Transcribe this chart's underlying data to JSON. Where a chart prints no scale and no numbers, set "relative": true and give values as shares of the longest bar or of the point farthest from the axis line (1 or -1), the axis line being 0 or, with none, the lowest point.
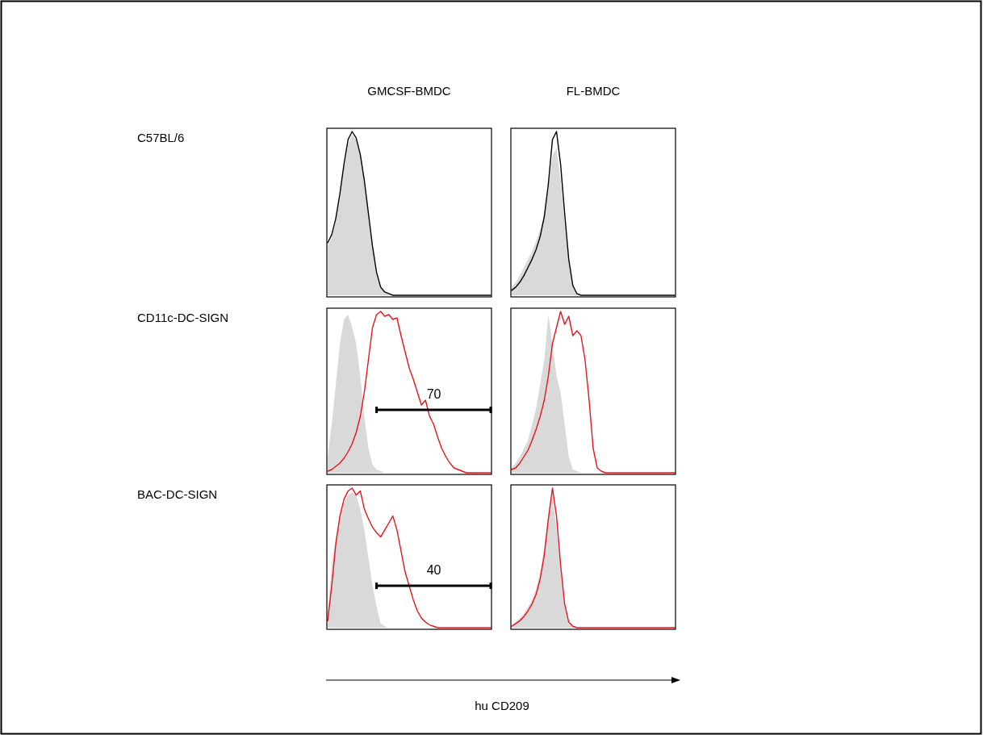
{
  "chart_data": [
    {
      "type": "area",
      "relative": true,
      "tick_labels": false,
      "title": "GMCSF-BMDC",
      "ylabel": "C57BL/6",
      "categories": [
        null,
        null,
        null,
        null,
        null,
        null,
        null,
        null,
        null,
        null,
        null,
        null,
        null,
        null,
        null,
        null,
        null,
        null,
        null,
        null,
        null,
        null,
        null,
        null,
        null,
        null,
        null,
        null,
        null,
        null,
        null,
        null,
        null,
        null,
        null,
        null,
        null,
        null,
        null,
        null,
        null
      ],
      "series": [
        {
          "type": "area",
          "color": "#d9d9d9",
          "values": [
            0.3,
            0.35,
            0.45,
            0.6,
            0.78,
            0.92,
            0.98,
            0.95,
            0.85,
            0.7,
            0.5,
            0.3,
            0.15,
            0.05,
            0.02,
            0.01,
            0,
            0,
            0,
            0,
            0,
            0,
            0,
            0,
            0,
            0,
            0,
            0,
            0,
            0,
            0,
            0,
            0,
            0,
            0,
            0,
            0,
            0,
            0,
            0,
            0
          ]
        },
        {
          "type": "line",
          "color": "#000000",
          "values": [
            0.32,
            0.37,
            0.47,
            0.62,
            0.8,
            0.95,
            1,
            0.96,
            0.86,
            0.7,
            0.5,
            0.3,
            0.14,
            0.05,
            0.02,
            0.01,
            0,
            0,
            0,
            0,
            0,
            0,
            0,
            0,
            0,
            0,
            0,
            0,
            0,
            0,
            0,
            0,
            0,
            0,
            0,
            0,
            0,
            0,
            0,
            0,
            0
          ]
        }
      ]
    },
    {
      "type": "area",
      "relative": true,
      "tick_labels": false,
      "title": "FL-BMDC",
      "categories": [
        null,
        null,
        null,
        null,
        null,
        null,
        null,
        null,
        null,
        null,
        null,
        null,
        null,
        null,
        null,
        null,
        null,
        null,
        null,
        null,
        null,
        null,
        null,
        null,
        null,
        null,
        null,
        null,
        null,
        null,
        null,
        null,
        null,
        null,
        null,
        null,
        null,
        null,
        null,
        null,
        null
      ],
      "series": [
        {
          "type": "area",
          "color": "#d9d9d9",
          "values": [
            0.05,
            0.08,
            0.12,
            0.17,
            0.22,
            0.27,
            0.33,
            0.4,
            0.5,
            0.65,
            0.85,
            0.9,
            0.7,
            0.45,
            0.2,
            0.05,
            0.01,
            0,
            0,
            0,
            0,
            0,
            0,
            0,
            0,
            0,
            0,
            0,
            0,
            0,
            0,
            0,
            0,
            0,
            0,
            0,
            0,
            0,
            0,
            0,
            0
          ]
        },
        {
          "type": "line",
          "color": "#000000",
          "values": [
            0.03,
            0.05,
            0.08,
            0.12,
            0.17,
            0.22,
            0.28,
            0.36,
            0.48,
            0.68,
            0.95,
            1,
            0.8,
            0.5,
            0.22,
            0.06,
            0.01,
            0,
            0,
            0,
            0,
            0,
            0,
            0,
            0,
            0,
            0,
            0,
            0,
            0,
            0,
            0,
            0,
            0,
            0,
            0,
            0,
            0,
            0,
            0,
            0
          ]
        }
      ]
    },
    {
      "type": "area",
      "relative": true,
      "tick_labels": false,
      "ylabel": "CD11c-DC-SIGN",
      "annotations": [
        "70"
      ],
      "categories": [
        null,
        null,
        null,
        null,
        null,
        null,
        null,
        null,
        null,
        null,
        null,
        null,
        null,
        null,
        null,
        null,
        null,
        null,
        null,
        null,
        null,
        null,
        null,
        null,
        null,
        null,
        null,
        null,
        null,
        null,
        null,
        null,
        null,
        null,
        null,
        null,
        null,
        null,
        null,
        null,
        null
      ],
      "series": [
        {
          "type": "area",
          "color": "#d9d9d9",
          "values": [
            0.1,
            0.3,
            0.55,
            0.8,
            0.95,
            0.98,
            0.9,
            0.8,
            0.6,
            0.35,
            0.15,
            0.05,
            0.02,
            0.01,
            0,
            0,
            0,
            0,
            0,
            0,
            0,
            0,
            0,
            0,
            0,
            0,
            0,
            0,
            0,
            0,
            0,
            0,
            0,
            0,
            0,
            0,
            0,
            0,
            0,
            0,
            0
          ]
        },
        {
          "type": "line",
          "color": "#e8141c",
          "values": [
            0.01,
            0.02,
            0.04,
            0.06,
            0.09,
            0.13,
            0.18,
            0.25,
            0.35,
            0.5,
            0.7,
            0.9,
            0.98,
            1,
            0.97,
            0.98,
            0.95,
            0.96,
            0.85,
            0.75,
            0.65,
            0.58,
            0.5,
            0.42,
            0.45,
            0.35,
            0.3,
            0.22,
            0.15,
            0.1,
            0.06,
            0.03,
            0.02,
            0.01,
            0,
            0,
            0,
            0,
            0,
            0,
            0
          ]
        },
        {
          "type": "line",
          "color": "#000000",
          "values": [
            null,
            null,
            null,
            null,
            null,
            null,
            null,
            null,
            null,
            null,
            null,
            null,
            0.39,
            0.39,
            0.39,
            0.39,
            0.39,
            0.39,
            0.39,
            0.39,
            0.39,
            0.39,
            0.39,
            0.39,
            0.39,
            0.39,
            0.39,
            0.39,
            0.39,
            0.39,
            0.39,
            0.39,
            0.39,
            0.39,
            0.39,
            0.39,
            0.39,
            0.39,
            0.39,
            0.39,
            0.39
          ]
        }
      ]
    },
    {
      "type": "area",
      "relative": true,
      "tick_labels": false,
      "categories": [
        null,
        null,
        null,
        null,
        null,
        null,
        null,
        null,
        null,
        null,
        null,
        null,
        null,
        null,
        null,
        null,
        null,
        null,
        null,
        null,
        null,
        null,
        null,
        null,
        null,
        null,
        null,
        null,
        null,
        null,
        null,
        null,
        null,
        null,
        null,
        null,
        null,
        null,
        null,
        null,
        null
      ],
      "series": [
        {
          "type": "area",
          "color": "#d9d9d9",
          "values": [
            0.03,
            0.06,
            0.1,
            0.15,
            0.2,
            0.3,
            0.4,
            0.55,
            0.7,
            0.98,
            0.8,
            0.6,
            0.5,
            0.3,
            0.1,
            0.02,
            0.01,
            0,
            0,
            0,
            0,
            0,
            0,
            0,
            0,
            0,
            0,
            0,
            0,
            0,
            0,
            0,
            0,
            0,
            0,
            0,
            0,
            0,
            0,
            0,
            0
          ]
        },
        {
          "type": "line",
          "color": "#e8141c",
          "values": [
            0.02,
            0.03,
            0.06,
            0.1,
            0.14,
            0.2,
            0.27,
            0.35,
            0.45,
            0.6,
            0.8,
            0.9,
            1,
            0.92,
            0.97,
            0.85,
            0.88,
            0.85,
            0.7,
            0.45,
            0.15,
            0.03,
            0.01,
            0,
            0,
            0,
            0,
            0,
            0,
            0,
            0,
            0,
            0,
            0,
            0,
            0,
            0,
            0,
            0,
            0,
            0
          ]
        }
      ]
    },
    {
      "type": "area",
      "relative": true,
      "tick_labels": false,
      "ylabel": "BAC-DC-SIGN",
      "xlabel": "hu CD209",
      "annotations": [
        "40"
      ],
      "categories": [
        null,
        null,
        null,
        null,
        null,
        null,
        null,
        null,
        null,
        null,
        null,
        null,
        null,
        null,
        null,
        null,
        null,
        null,
        null,
        null,
        null,
        null,
        null,
        null,
        null,
        null,
        null,
        null,
        null,
        null,
        null,
        null,
        null,
        null,
        null,
        null,
        null,
        null,
        null,
        null,
        null
      ],
      "series": [
        {
          "type": "area",
          "color": "#d9d9d9",
          "values": [
            0.1,
            0.45,
            0.65,
            0.8,
            0.9,
            0.95,
            0.97,
            0.95,
            0.85,
            0.7,
            0.5,
            0.3,
            0.15,
            0.03,
            0.01,
            0,
            0,
            0,
            0,
            0,
            0,
            0,
            0,
            0,
            0,
            0,
            0,
            0,
            0,
            0,
            0,
            0,
            0,
            0,
            0,
            0,
            0,
            0,
            0,
            0,
            0
          ]
        },
        {
          "type": "line",
          "color": "#e8141c",
          "values": [
            0.05,
            0.3,
            0.6,
            0.8,
            0.92,
            0.98,
            1,
            0.95,
            0.98,
            0.85,
            0.78,
            0.72,
            0.68,
            0.65,
            0.7,
            0.75,
            0.8,
            0.7,
            0.55,
            0.4,
            0.3,
            0.2,
            0.12,
            0.07,
            0.04,
            0.02,
            0.01,
            0,
            0,
            0,
            0,
            0,
            0,
            0,
            0,
            0,
            0,
            0,
            0,
            0,
            0
          ]
        },
        {
          "type": "line",
          "color": "#000000",
          "values": [
            null,
            null,
            null,
            null,
            null,
            null,
            null,
            null,
            null,
            null,
            null,
            null,
            0.3,
            0.3,
            0.3,
            0.3,
            0.3,
            0.3,
            0.3,
            0.3,
            0.3,
            0.3,
            0.3,
            0.3,
            0.3,
            0.3,
            0.3,
            0.3,
            0.3,
            0.3,
            0.3,
            0.3,
            0.3,
            0.3,
            0.3,
            0.3,
            0.3,
            0.3,
            0.3,
            0.3,
            0.3
          ]
        }
      ]
    },
    {
      "type": "area",
      "relative": true,
      "tick_labels": false,
      "categories": [
        null,
        null,
        null,
        null,
        null,
        null,
        null,
        null,
        null,
        null,
        null,
        null,
        null,
        null,
        null,
        null,
        null,
        null,
        null,
        null,
        null,
        null,
        null,
        null,
        null,
        null,
        null,
        null,
        null,
        null,
        null,
        null,
        null,
        null,
        null,
        null,
        null,
        null,
        null,
        null,
        null
      ],
      "series": [
        {
          "type": "area",
          "color": "#d9d9d9",
          "values": [
            0.02,
            0.04,
            0.07,
            0.1,
            0.15,
            0.2,
            0.28,
            0.4,
            0.58,
            0.8,
            0.98,
            0.7,
            0.4,
            0.15,
            0.03,
            0.01,
            0,
            0,
            0,
            0,
            0,
            0,
            0,
            0,
            0,
            0,
            0,
            0,
            0,
            0,
            0,
            0,
            0,
            0,
            0,
            0,
            0,
            0,
            0,
            0,
            0
          ]
        },
        {
          "type": "line",
          "color": "#e8141c",
          "values": [
            0.01,
            0.03,
            0.05,
            0.08,
            0.12,
            0.17,
            0.24,
            0.35,
            0.52,
            0.78,
            1,
            0.8,
            0.45,
            0.17,
            0.04,
            0.01,
            0,
            0,
            0,
            0,
            0,
            0,
            0,
            0,
            0,
            0,
            0,
            0,
            0,
            0,
            0,
            0,
            0,
            0,
            0,
            0,
            0,
            0,
            0,
            0,
            0
          ]
        }
      ]
    }
  ]
}
